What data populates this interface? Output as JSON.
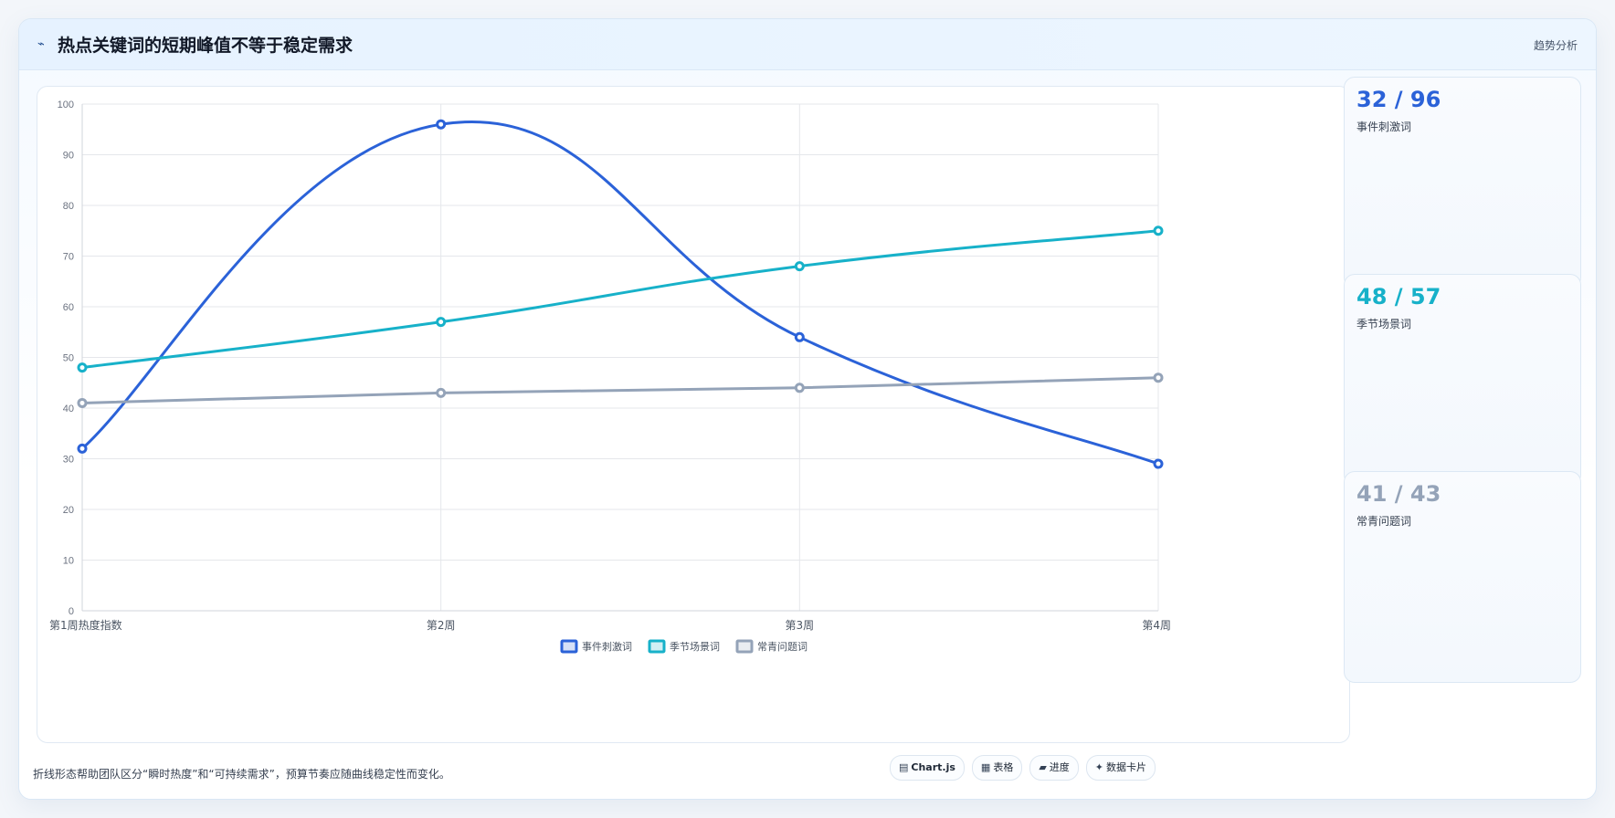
{
  "header": {
    "icon": "pulse-icon",
    "title": "热点关键词的短期峰值不等于稳定需求",
    "tag": "趋势分析"
  },
  "stats": [
    {
      "value": "32 / 96",
      "label": "事件刺激词",
      "color": "#2b62d8"
    },
    {
      "value": "48 / 57",
      "label": "季节场景词",
      "color": "#17b1c9"
    },
    {
      "value": "41 / 43",
      "label": "常青问题词",
      "color": "#94a3b8"
    }
  ],
  "footer": {
    "note": "折线形态帮助团队区分“瞬时热度”和“可持续需求”，预算节奏应随曲线稳定性而变化。",
    "chips": [
      {
        "icon": "chart-icon",
        "glyph": "▤",
        "label": "Chart.js",
        "bold": true
      },
      {
        "icon": "table-icon",
        "glyph": "▦",
        "label": "表格",
        "bold": false
      },
      {
        "icon": "progress-icon",
        "glyph": "▰",
        "label": "进度",
        "bold": false
      },
      {
        "icon": "sparkle-icon",
        "glyph": "✦",
        "label": "数据卡片",
        "bold": false
      }
    ]
  },
  "chart_data": {
    "type": "line",
    "categories": [
      "第1周热度指数",
      "第2周",
      "第3周",
      "第4周"
    ],
    "series": [
      {
        "name": "事件刺激词",
        "values": [
          32,
          96,
          54,
          29
        ],
        "color": "#2b62d8"
      },
      {
        "name": "季节场景词",
        "values": [
          48,
          57,
          68,
          75
        ],
        "color": "#17b1c9"
      },
      {
        "name": "常青问题词",
        "values": [
          41,
          43,
          44,
          46
        ],
        "color": "#94a3b8"
      }
    ],
    "ylim": [
      0,
      100
    ],
    "yticks": [
      0,
      10,
      20,
      30,
      40,
      50,
      60,
      70,
      80,
      90,
      100
    ],
    "grid": true,
    "legend": "bottom"
  }
}
